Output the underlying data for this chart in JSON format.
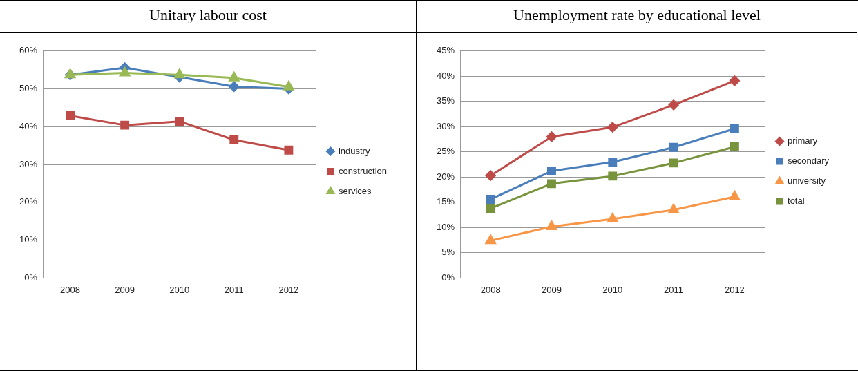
{
  "chart_data": [
    {
      "type": "line",
      "title": "Unitary labour cost",
      "categories": [
        "2008",
        "2009",
        "2010",
        "2011",
        "2012"
      ],
      "series": [
        {
          "name": "industry",
          "color": "#4a7ebb",
          "marker": "diamond",
          "values": [
            53.7,
            55.6,
            53.1,
            50.6,
            50.0
          ]
        },
        {
          "name": "construction",
          "color": "#be4b48",
          "marker": "square",
          "values": [
            42.9,
            40.4,
            41.4,
            36.5,
            33.8
          ]
        },
        {
          "name": "services",
          "color": "#98b954",
          "marker": "triangle",
          "values": [
            53.7,
            54.2,
            53.7,
            52.9,
            50.5
          ]
        }
      ],
      "ylim": [
        0,
        60
      ],
      "yticks": [
        {
          "value": 0,
          "label": "0%"
        },
        {
          "value": 10,
          "label": "10%"
        },
        {
          "value": 20,
          "label": "20%"
        },
        {
          "value": 30,
          "label": "30%"
        },
        {
          "value": 40,
          "label": "40%"
        },
        {
          "value": 50,
          "label": "50%"
        },
        {
          "value": 60,
          "label": "60%"
        }
      ],
      "grid": "y",
      "legend": "right",
      "line_style": "solid"
    },
    {
      "type": "line",
      "title": "Unemployment rate by educational level",
      "categories": [
        "2008",
        "2009",
        "2010",
        "2011",
        "2012"
      ],
      "series": [
        {
          "name": "primary",
          "color": "#be4b48",
          "marker": "diamond",
          "values": [
            20.3,
            28.0,
            29.9,
            34.3,
            39.1
          ]
        },
        {
          "name": "secondary",
          "color": "#4a7ebb",
          "marker": "square",
          "values": [
            15.6,
            21.2,
            23.0,
            25.9,
            29.6
          ]
        },
        {
          "name": "university",
          "color": "#f79646",
          "marker": "triangle",
          "values": [
            7.4,
            10.2,
            11.7,
            13.5,
            16.1
          ]
        },
        {
          "name": "total",
          "color": "#77933c",
          "marker": "square",
          "values": [
            13.8,
            18.7,
            20.2,
            22.8,
            26.0
          ]
        }
      ],
      "ylim": [
        0,
        45
      ],
      "yticks": [
        {
          "value": 0,
          "label": "0%"
        },
        {
          "value": 5,
          "label": "5%"
        },
        {
          "value": 10,
          "label": "10%"
        },
        {
          "value": 15,
          "label": "15%"
        },
        {
          "value": 20,
          "label": "20%"
        },
        {
          "value": 25,
          "label": "25%"
        },
        {
          "value": 30,
          "label": "30%"
        },
        {
          "value": 35,
          "label": "35%"
        },
        {
          "value": 40,
          "label": "40%"
        },
        {
          "value": 45,
          "label": "45%"
        }
      ],
      "grid": "y",
      "legend": "right",
      "line_style": "solid"
    }
  ]
}
